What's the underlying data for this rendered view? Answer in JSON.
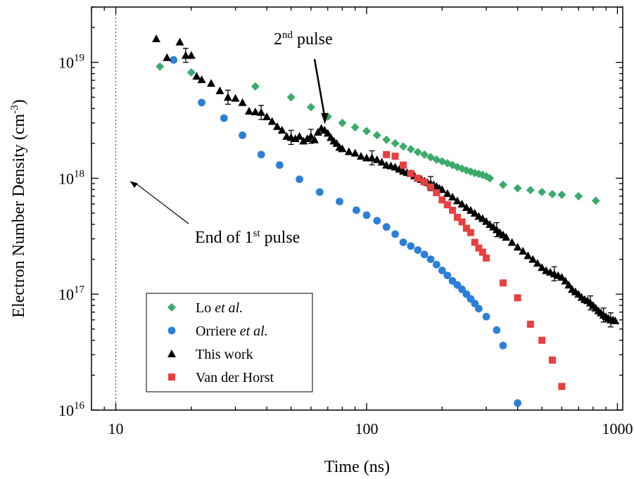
{
  "chart_data": {
    "type": "scatter",
    "xlabel": "Time (ns)",
    "ylabel": {
      "main": "Electron Number Density (cm",
      "sup": "-3",
      "close": ")"
    },
    "xscale": "log",
    "yscale": "log",
    "xlim": [
      8,
      1050
    ],
    "ylim": [
      1e+16,
      3e+19
    ],
    "xticks": [
      10,
      100,
      1000
    ],
    "xtick_labels": [
      "10",
      "100",
      "1000"
    ],
    "yticks": [
      1e+16,
      1e+17,
      1e+18,
      1e+19
    ],
    "ytick_labels": [
      {
        "base": "10",
        "exp": "16"
      },
      {
        "base": "10",
        "exp": "17"
      },
      {
        "base": "10",
        "exp": "18"
      },
      {
        "base": "10",
        "exp": "19"
      }
    ],
    "grid": false,
    "legend_position": "bottom-left",
    "vline_x": 10,
    "annotations": [
      {
        "id": "first-pulse",
        "pre": "End of 1",
        "sup": "st",
        "post": " pulse",
        "arrow_to": [
          10,
          1e+18
        ]
      },
      {
        "id": "second-pulse",
        "pre": "2",
        "sup": "nd",
        "post": " pulse",
        "arrow_to": [
          68,
          3e+18
        ]
      }
    ],
    "series": [
      {
        "name": "Lo",
        "name_suffix": "et al.",
        "marker": "diamond",
        "color": "#3aab6b",
        "x": [
          15,
          20,
          36,
          50,
          60,
          70,
          80,
          90,
          100,
          110,
          120,
          130,
          140,
          150,
          160,
          170,
          180,
          190,
          200,
          210,
          220,
          230,
          240,
          250,
          260,
          270,
          280,
          290,
          300,
          310,
          350,
          400,
          450,
          500,
          550,
          600,
          700,
          820
        ],
        "y": [
          9.2e+18,
          8.2e+18,
          6.2e+18,
          5e+18,
          4.1e+18,
          3.4e+18,
          3e+18,
          2.75e+18,
          2.55e+18,
          2.35e+18,
          2.15e+18,
          2e+18,
          1.88e+18,
          1.78e+18,
          1.68e+18,
          1.6e+18,
          1.52e+18,
          1.45e+18,
          1.4e+18,
          1.35e+18,
          1.3e+18,
          1.25e+18,
          1.21e+18,
          1.17e+18,
          1.14e+18,
          1.11e+18,
          1.09e+18,
          1.07e+18,
          1.04e+18,
          1e+18,
          8.8e+17,
          8.2e+17,
          7.9e+17,
          7.6e+17,
          7.3e+17,
          7.2e+17,
          7e+17,
          6.4e+17
        ]
      },
      {
        "name": "Orriere",
        "name_suffix": "et al.",
        "marker": "circle",
        "color": "#2c7fd8",
        "x": [
          17,
          22,
          27,
          32,
          38,
          45,
          54,
          65,
          78,
          91,
          100,
          110,
          120,
          130,
          140,
          150,
          160,
          170,
          180,
          190,
          200,
          210,
          220,
          230,
          240,
          250,
          260,
          270,
          280,
          300,
          330,
          350,
          400
        ],
        "y": [
          1.05e+19,
          4.5e+18,
          3.3e+18,
          2.35e+18,
          1.6e+18,
          1.3e+18,
          9.8e+17,
          7.6e+17,
          6.3e+17,
          5.3e+17,
          4.8e+17,
          4.3e+17,
          3.8e+17,
          3.3e+17,
          2.8e+17,
          2.6e+17,
          2.4e+17,
          2.2e+17,
          2e+17,
          1.8e+17,
          1.6e+17,
          1.45e+17,
          1.3e+17,
          1.2e+17,
          1.1e+17,
          1e+17,
          9.1e+16,
          8.3e+16,
          7.5e+16,
          6.4e+16,
          4.9e+16,
          3.6e+16,
          1.15e+16
        ]
      },
      {
        "name": "This work",
        "marker": "triangle",
        "color": "#000000",
        "x": [
          14.5,
          16,
          18,
          19,
          20,
          21,
          22,
          24,
          26,
          28,
          30,
          32,
          34,
          36,
          38,
          40,
          42,
          44,
          46,
          48,
          50,
          52,
          54,
          56,
          58,
          60,
          62,
          64,
          66,
          68,
          70,
          72,
          74,
          76,
          78,
          80,
          85,
          90,
          95,
          100,
          105,
          110,
          115,
          120,
          125,
          130,
          135,
          140,
          145,
          150,
          155,
          160,
          165,
          170,
          175,
          180,
          185,
          190,
          195,
          200,
          210,
          220,
          230,
          240,
          250,
          260,
          270,
          280,
          290,
          300,
          310,
          320,
          330,
          340,
          350,
          360,
          380,
          400,
          420,
          440,
          460,
          480,
          500,
          520,
          540,
          560,
          580,
          600,
          620,
          640,
          660,
          680,
          700,
          720,
          740,
          760,
          780,
          800,
          820,
          840,
          860,
          880,
          900,
          920,
          940,
          960,
          980
        ],
        "y": [
          1.6e+19,
          1.1e+19,
          1.5e+19,
          1.15e+19,
          1.15e+19,
          7.6e+18,
          7.1e+18,
          6.6e+18,
          5.7e+18,
          5e+18,
          4.9e+18,
          4.5e+18,
          3.8e+18,
          3.75e+18,
          3.7e+18,
          3.4e+18,
          3.1e+18,
          2.8e+18,
          2.6e+18,
          2.3e+18,
          2.25e+18,
          2.2e+18,
          2.3e+18,
          2.1e+18,
          2.2e+18,
          2.3e+18,
          2.15e+18,
          2.5e+18,
          2.7e+18,
          2.6e+18,
          2.45e+18,
          2.25e+18,
          2.1e+18,
          2e+18,
          1.85e+18,
          1.8e+18,
          1.7e+18,
          1.65e+18,
          1.55e+18,
          1.5e+18,
          1.5e+18,
          1.45e+18,
          1.38e+18,
          1.3e+18,
          1.28e+18,
          1.25e+18,
          1.2e+18,
          1.15e+18,
          1.12e+18,
          1.1e+18,
          1.05e+18,
          1e+18,
          9.8e+17,
          9.5e+17,
          9.2e+17,
          9e+17,
          8.8e+17,
          8.5e+17,
          8.2e+17,
          8e+17,
          7.4e+17,
          6.9e+17,
          6.4e+17,
          6e+17,
          5.6e+17,
          5.3e+17,
          5e+17,
          4.7e+17,
          4.5e+17,
          4.25e+17,
          4e+17,
          3.8e+17,
          3.6e+17,
          3.4e+17,
          3.25e+17,
          3.1e+17,
          2.8e+17,
          2.55e+17,
          2.35e+17,
          2.15e+17,
          2e+17,
          1.85e+17,
          1.7e+17,
          1.6e+17,
          1.55e+17,
          1.5e+17,
          1.45e+17,
          1.4e+17,
          1.3e+17,
          1.2e+17,
          1.1e+17,
          1.05e+17,
          1e+17,
          9.4e+16,
          9e+16,
          8.8e+16,
          8.4e+16,
          8e+16,
          7.6e+16,
          7.2e+16,
          6.9e+16,
          6.6e+16,
          6.4e+16,
          6.2e+16,
          6e+16,
          6e+16,
          5.9e+16
        ]
      },
      {
        "name": "Van der Horst",
        "marker": "square",
        "color": "#e84040",
        "x": [
          120,
          130,
          140,
          150,
          160,
          170,
          180,
          190,
          200,
          210,
          220,
          230,
          240,
          250,
          260,
          270,
          280,
          290,
          300,
          350,
          400,
          450,
          500,
          550,
          600
        ],
        "y": [
          1.6e+18,
          1.55e+18,
          1.3e+18,
          1.1e+18,
          1e+18,
          9.3e+17,
          8.4e+17,
          7.5e+17,
          6.5e+17,
          5.9e+17,
          5.3e+17,
          4.6e+17,
          4.2e+17,
          3.7e+17,
          3.4e+17,
          2.8e+17,
          2.5e+17,
          2.3e+17,
          2.05e+17,
          1.25e+17,
          9.3e+16,
          5.5e+16,
          4e+16,
          2.7e+16,
          1.6e+16
        ]
      }
    ]
  }
}
